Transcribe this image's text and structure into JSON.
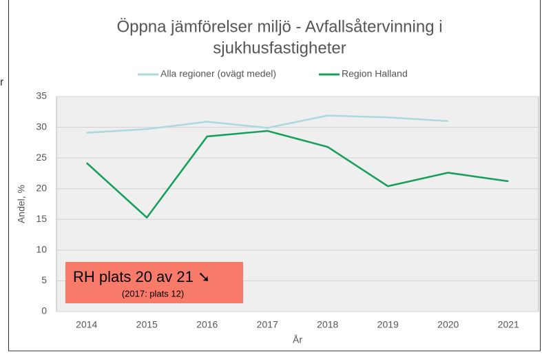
{
  "chart_data": {
    "type": "line",
    "title": [
      "Öppna jämförelser miljö - Avfallsåtervinning i",
      "sjukhusfastigheter"
    ],
    "fragment": "r",
    "categories": [
      "2014",
      "2015",
      "2016",
      "2017",
      "2018",
      "2019",
      "2020",
      "2021"
    ],
    "series": [
      {
        "name": "Alla regioner (ovägt medel)",
        "color": "#add8e0",
        "values": [
          29.1,
          29.7,
          30.9,
          29.9,
          31.9,
          31.6,
          31.0,
          null
        ]
      },
      {
        "name": "Region Halland",
        "color": "#17a05a",
        "values": [
          24.2,
          15.3,
          28.5,
          29.4,
          26.8,
          20.4,
          22.6,
          21.2
        ]
      }
    ],
    "ylim": [
      0,
      35
    ],
    "yticks": [
      0,
      5,
      10,
      15,
      20,
      25,
      30,
      35
    ],
    "grid": true,
    "xlabel": "År",
    "ylabel": "Andel, %",
    "annotation": {
      "text": "RH plats 20 av 21 ➘",
      "subtext": "(2017: plats 12)",
      "color": "#f87b6a"
    }
  }
}
